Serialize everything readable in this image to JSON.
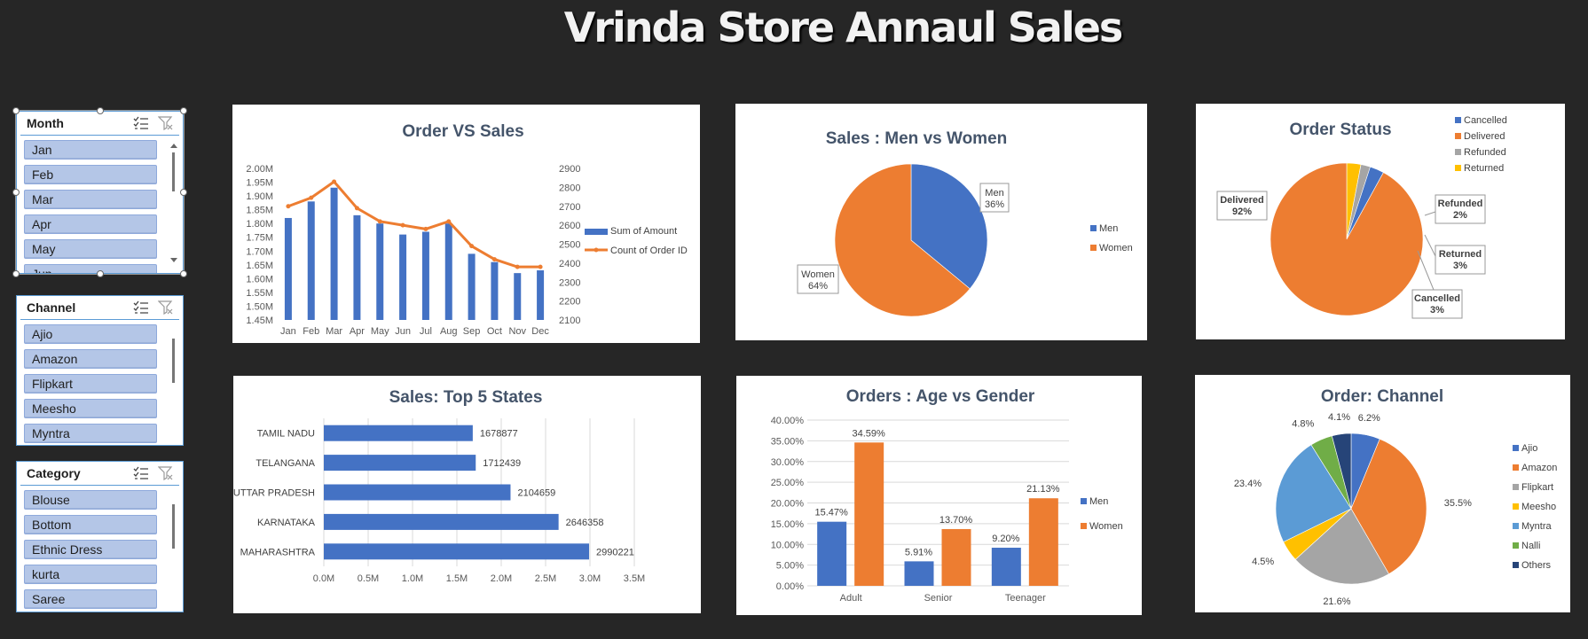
{
  "dashboard": {
    "title": "Vrinda Store Annaul Sales"
  },
  "slicers": {
    "month": {
      "title": "Month",
      "items": [
        "Jan",
        "Feb",
        "Mar",
        "Apr",
        "May",
        "Jun"
      ]
    },
    "channel": {
      "title": "Channel",
      "items": [
        "Ajio",
        "Amazon",
        "Flipkart",
        "Meesho",
        "Myntra"
      ]
    },
    "category": {
      "title": "Category",
      "items": [
        "Blouse",
        "Bottom",
        "Ethnic Dress",
        "kurta",
        "Saree"
      ]
    }
  },
  "chart_data": [
    {
      "id": "order-vs-sales",
      "type": "bar+line",
      "title": "Order VS Sales",
      "categories": [
        "Jan",
        "Feb",
        "Mar",
        "Apr",
        "May",
        "Jun",
        "Jul",
        "Aug",
        "Sep",
        "Oct",
        "Nov",
        "Dec"
      ],
      "series": [
        {
          "name": "Sum of Amount",
          "type": "bar",
          "axis": "left",
          "color": "#4472c4",
          "values": [
            1.82,
            1.88,
            1.93,
            1.83,
            1.8,
            1.76,
            1.77,
            1.8,
            1.69,
            1.66,
            1.62,
            1.63
          ]
        },
        {
          "name": "Count of Order ID",
          "type": "line",
          "axis": "right",
          "color": "#ed7d31",
          "values": [
            2700,
            2745,
            2830,
            2690,
            2620,
            2600,
            2580,
            2620,
            2490,
            2420,
            2380,
            2380
          ]
        }
      ],
      "y_left": {
        "ticks": [
          "1.45M",
          "1.50M",
          "1.55M",
          "1.60M",
          "1.65M",
          "1.70M",
          "1.75M",
          "1.80M",
          "1.85M",
          "1.90M",
          "1.95M",
          "2.00M"
        ],
        "min": 1.45,
        "max": 2.0
      },
      "y_right": {
        "ticks": [
          "2100",
          "2200",
          "2300",
          "2400",
          "2500",
          "2600",
          "2700",
          "2800",
          "2900"
        ],
        "min": 2100,
        "max": 2900
      },
      "legend": "right"
    },
    {
      "id": "sales-men-women",
      "type": "pie",
      "title": "Sales : Men vs Women",
      "slices": [
        {
          "name": "Men",
          "value": 36,
          "label": "Men\n36%",
          "color": "#4472c4"
        },
        {
          "name": "Women",
          "value": 64,
          "label": "Women\n64%",
          "color": "#ed7d31"
        }
      ],
      "legend": "right"
    },
    {
      "id": "order-status",
      "type": "pie",
      "title": "Order Status",
      "slices": [
        {
          "name": "Cancelled",
          "value": 3,
          "label": "Cancelled\n3%",
          "color": "#4472c4"
        },
        {
          "name": "Delivered",
          "value": 92,
          "label": "Delivered\n92%",
          "color": "#ed7d31"
        },
        {
          "name": "Refunded",
          "value": 2,
          "label": "Refunded\n2%",
          "color": "#a5a5a5"
        },
        {
          "name": "Returned",
          "value": 3,
          "label": "Returned\n3%",
          "color": "#ffc000"
        }
      ],
      "legend": "top-right"
    },
    {
      "id": "sales-top-states",
      "type": "bar",
      "orientation": "horizontal",
      "title": "Sales: Top 5 States",
      "categories": [
        "TAMIL NADU",
        "TELANGANA",
        "UTTAR PRADESH",
        "KARNATAKA",
        "MAHARASHTRA"
      ],
      "values": [
        1678877,
        1712439,
        2104659,
        2646358,
        2990221
      ],
      "data_labels": [
        "1678877",
        "1712439",
        "2104659",
        "2646358",
        "2990221"
      ],
      "x_ticks": [
        "0.0M",
        "0.5M",
        "1.0M",
        "1.5M",
        "2.0M",
        "2.5M",
        "3.0M",
        "3.5M"
      ],
      "xlim": [
        0,
        3500000
      ],
      "color": "#4472c4"
    },
    {
      "id": "orders-age-gender",
      "type": "bar",
      "title": "Orders : Age vs Gender",
      "categories": [
        "Adult",
        "Senior",
        "Teenager"
      ],
      "series": [
        {
          "name": "Men",
          "color": "#4472c4",
          "values": [
            15.47,
            5.91,
            9.2
          ],
          "labels": [
            "15.47%",
            "5.91%",
            "9.20%"
          ]
        },
        {
          "name": "Women",
          "color": "#ed7d31",
          "values": [
            34.59,
            13.7,
            21.13
          ],
          "labels": [
            "34.59%",
            "13.70%",
            "21.13%"
          ]
        }
      ],
      "y_ticks": [
        "0.00%",
        "5.00%",
        "10.00%",
        "15.00%",
        "20.00%",
        "25.00%",
        "30.00%",
        "35.00%",
        "40.00%"
      ],
      "ylim": [
        0,
        40
      ],
      "legend": "right"
    },
    {
      "id": "order-channel",
      "type": "pie",
      "title": "Order: Channel",
      "slices": [
        {
          "name": "Ajio",
          "value": 6.2,
          "label": "6.2%",
          "color": "#4472c4"
        },
        {
          "name": "Amazon",
          "value": 35.5,
          "label": "35.5%",
          "color": "#ed7d31"
        },
        {
          "name": "Flipkart",
          "value": 21.6,
          "label": "21.6%",
          "color": "#a5a5a5"
        },
        {
          "name": "Meesho",
          "value": 4.5,
          "label": "4.5%",
          "color": "#ffc000"
        },
        {
          "name": "Myntra",
          "value": 23.4,
          "label": "23.4%",
          "color": "#5b9bd5"
        },
        {
          "name": "Nalli",
          "value": 4.8,
          "label": "4.8%",
          "color": "#70ad47"
        },
        {
          "name": "Others",
          "value": 4.1,
          "label": "4.1%",
          "color": "#264478"
        }
      ],
      "legend": "right"
    }
  ]
}
